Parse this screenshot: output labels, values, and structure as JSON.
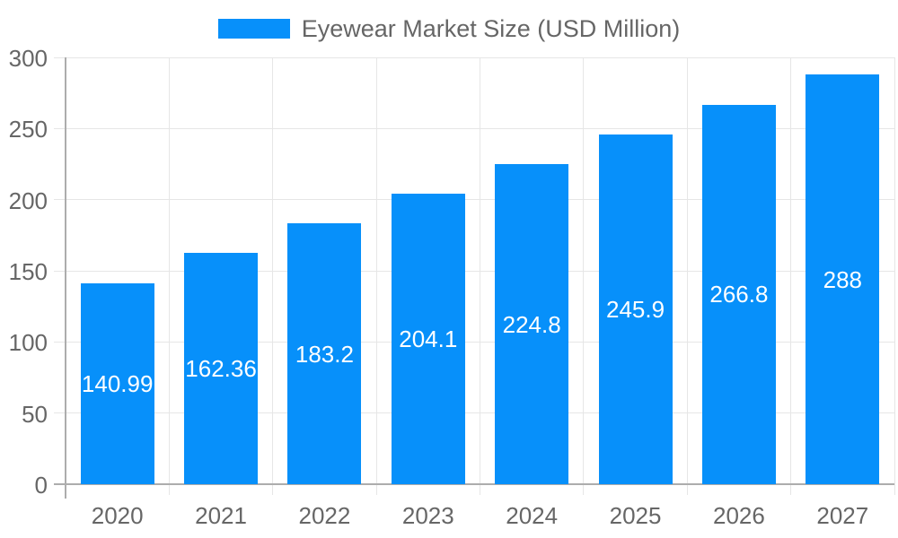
{
  "chart_data": {
    "type": "bar",
    "title": "Eyewear Market Size (USD Million)",
    "legend": {
      "label": "Eyewear Market Size (USD Million)",
      "position": "top-center"
    },
    "categories": [
      "2020",
      "2021",
      "2022",
      "2023",
      "2024",
      "2025",
      "2026",
      "2027"
    ],
    "series": [
      {
        "name": "Eyewear Market Size (USD Million)",
        "values": [
          140.99,
          162.36,
          183.2,
          204.1,
          224.8,
          245.9,
          266.8,
          288
        ],
        "data_labels": [
          "140.99",
          "162.36",
          "183.2",
          "204.1",
          "224.8",
          "245.9",
          "266.8",
          "288"
        ]
      }
    ],
    "xlabel": "",
    "ylabel": "",
    "ylim": [
      0,
      300
    ],
    "y_ticks": [
      0,
      50,
      100,
      150,
      200,
      250,
      300
    ],
    "y_tick_labels": [
      "0",
      "50",
      "100",
      "150",
      "200",
      "250",
      "300"
    ],
    "grid": "on",
    "colors": {
      "bar": "#0790fa",
      "gridline": "#e6e6e6",
      "axis_line": "#adadad",
      "tick_text": "#666666",
      "legend_text": "#666666",
      "bar_label_text": "#ffffff",
      "background": "#ffffff"
    }
  }
}
